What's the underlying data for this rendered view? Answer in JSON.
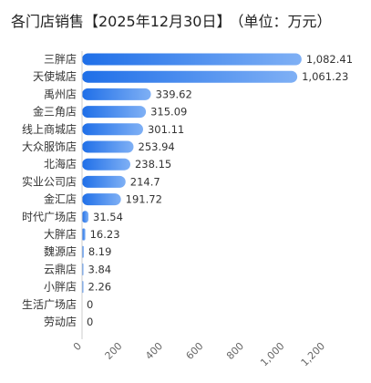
{
  "title": "各门店销售【2025年12月30日】",
  "unit_label": "（单位：万元）",
  "chart_data": {
    "type": "bar",
    "orientation": "horizontal",
    "categories": [
      "三胖店",
      "天使城店",
      "禹州店",
      "金三角店",
      "线上商城店",
      "大众服饰店",
      "北海店",
      "实业公司店",
      "金汇店",
      "时代广场店",
      "大胖店",
      "魏源店",
      "云鼎店",
      "小胖店",
      "生活广场店",
      "劳动店"
    ],
    "values": [
      1082.41,
      1061.23,
      339.62,
      315.09,
      301.11,
      253.94,
      238.15,
      214.7,
      191.72,
      31.54,
      16.23,
      8.19,
      3.84,
      2.26,
      0,
      0
    ],
    "value_labels": [
      "1,082.41",
      "1,061.23",
      "339.62",
      "315.09",
      "301.11",
      "253.94",
      "238.15",
      "214.7",
      "191.72",
      "31.54",
      "16.23",
      "8.19",
      "3.84",
      "2.26",
      "0",
      "0"
    ],
    "xlim": [
      0,
      1200
    ],
    "x_ticks": [
      0,
      200,
      400,
      600,
      800,
      1000,
      1200
    ],
    "x_tick_labels": [
      "0",
      "200",
      "400",
      "600",
      "800",
      "1,000",
      "1,200"
    ],
    "grid": false,
    "colors": {
      "bar_start": "#1f6fe8",
      "bar_end": "#7fb0f5",
      "axis": "#cccccc"
    }
  }
}
